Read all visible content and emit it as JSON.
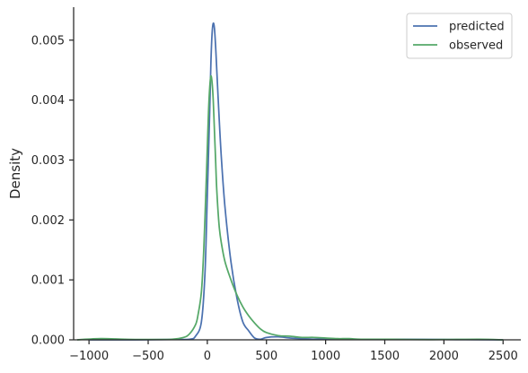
{
  "chart_data": {
    "type": "line",
    "title": "",
    "xlabel": "",
    "ylabel": "Density",
    "xlim": [
      -1130,
      2650
    ],
    "ylim": [
      0,
      0.00555
    ],
    "grid": false,
    "legend_position": "top-right",
    "x_ticks": [
      -1000,
      -500,
      0,
      500,
      1000,
      1500,
      2000,
      2500
    ],
    "x_tick_labels": [
      "−1000",
      "−500",
      "0",
      "500",
      "1000",
      "1500",
      "2000",
      "2500"
    ],
    "y_ticks": [
      0,
      0.001,
      0.002,
      0.003,
      0.004,
      0.005
    ],
    "y_tick_labels": [
      "0.000",
      "0.001",
      "0.002",
      "0.003",
      "0.004",
      "0.005"
    ],
    "series": [
      {
        "name": "predicted",
        "color": "#4c72b0",
        "x": [
          -1000,
          -600,
          -300,
          -150,
          -100,
          -50,
          -20,
          0,
          20,
          30,
          40,
          50,
          60,
          70,
          80,
          100,
          120,
          150,
          200,
          250,
          300,
          350,
          400,
          450,
          500,
          600,
          700,
          800,
          900,
          1000,
          1200,
          1500,
          2000,
          2500
        ],
        "y": [
          0,
          0,
          5e-06,
          1e-05,
          6e-05,
          0.0003,
          0.0011,
          0.0024,
          0.0038,
          0.0046,
          0.0051,
          0.00528,
          0.0052,
          0.0049,
          0.0045,
          0.0037,
          0.003,
          0.0022,
          0.0013,
          0.0007,
          0.0003,
          0.00015,
          3e-05,
          1e-05,
          4e-05,
          5e-05,
          3e-05,
          2e-05,
          1e-05,
          2e-05,
          1e-05,
          1e-05,
          5e-06,
          0
        ]
      },
      {
        "name": "observed",
        "color": "#55a868",
        "x": [
          -1100,
          -900,
          -700,
          -500,
          -300,
          -200,
          -150,
          -100,
          -80,
          -50,
          -30,
          -10,
          0,
          10,
          20,
          30,
          40,
          50,
          60,
          70,
          80,
          100,
          120,
          150,
          200,
          250,
          300,
          350,
          400,
          450,
          500,
          600,
          700,
          800,
          900,
          1000,
          1100,
          1200,
          1300,
          1500,
          1700,
          2000,
          2300,
          2500
        ],
        "y": [
          0,
          2e-05,
          1e-05,
          5e-06,
          1e-05,
          4e-05,
          0.0001,
          0.00025,
          0.0004,
          0.0008,
          0.0015,
          0.0026,
          0.0032,
          0.0038,
          0.0042,
          0.0044,
          0.0043,
          0.004,
          0.0035,
          0.003,
          0.0025,
          0.0019,
          0.0016,
          0.0013,
          0.001,
          0.00075,
          0.00055,
          0.0004,
          0.00028,
          0.00018,
          0.00012,
          7e-05,
          6e-05,
          4e-05,
          4e-05,
          3e-05,
          2e-05,
          2e-05,
          1e-05,
          1e-05,
          5e-06,
          5e-06,
          1e-05,
          0
        ]
      }
    ]
  }
}
